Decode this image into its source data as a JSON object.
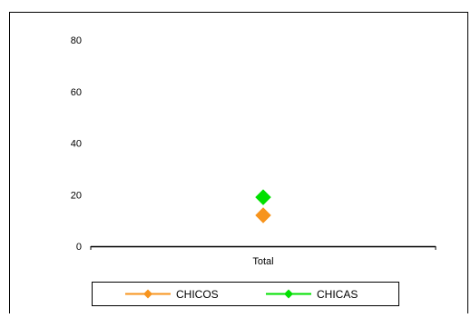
{
  "chart_data": {
    "type": "line",
    "categories": [
      "Total"
    ],
    "ylim": [
      0,
      80
    ],
    "yticks": [
      0,
      20,
      40,
      60,
      80
    ],
    "grid": false,
    "legend_position": "bottom",
    "series": [
      {
        "name": "CHICOS",
        "values": [
          12
        ],
        "color": "#f7941d",
        "marker": "diamond"
      },
      {
        "name": "CHICAS",
        "values": [
          19
        ],
        "color": "#00e000",
        "marker": "diamond"
      }
    ]
  }
}
